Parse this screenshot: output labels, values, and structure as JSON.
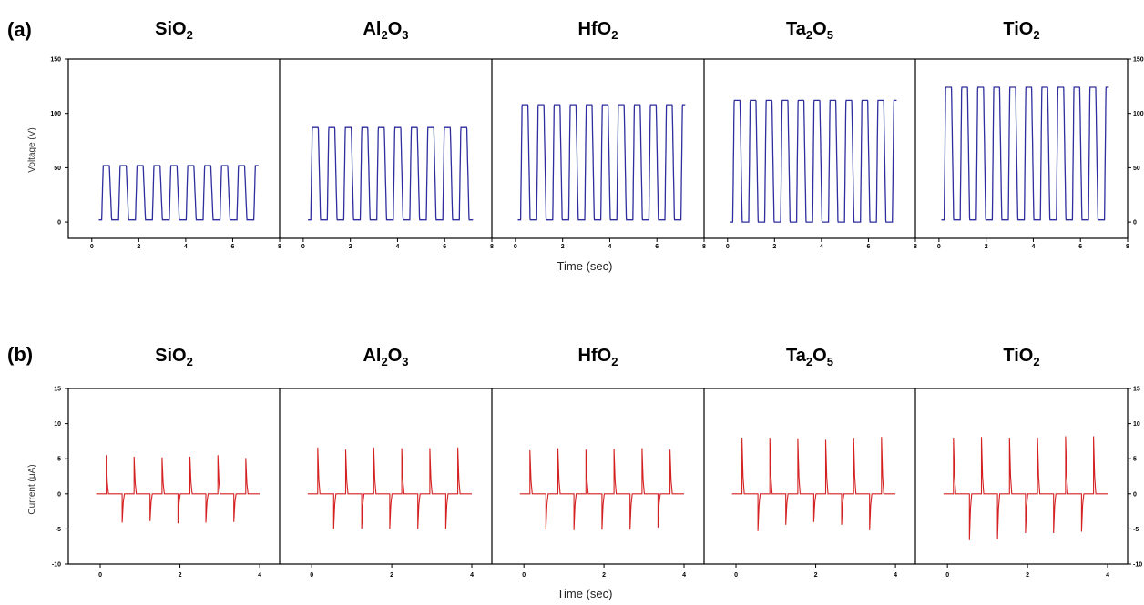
{
  "figure": {
    "panels": [
      {
        "letter": "(a)",
        "ylabel": "Voltage (V)",
        "xlabel": "Time (sec)",
        "color": "#2e2e9e",
        "ylim": [
          -15,
          150
        ],
        "xlim": [
          -1,
          8
        ],
        "yticks": [
          0,
          50,
          100,
          150
        ],
        "xticks": [
          0,
          2,
          4,
          6,
          8
        ],
        "subplots": [
          {
            "title": "SiO",
            "sub1": "2",
            "mid": "",
            "sub2": ""
          },
          {
            "title": "Al",
            "sub1": "2",
            "mid": "O",
            "sub2": "3"
          },
          {
            "title": "HfO",
            "sub1": "2",
            "mid": "",
            "sub2": ""
          },
          {
            "title": "Ta",
            "sub1": "2",
            "mid": "O",
            "sub2": "5"
          },
          {
            "title": "TiO",
            "sub1": "2",
            "mid": "",
            "sub2": ""
          }
        ]
      },
      {
        "letter": "(b)",
        "ylabel": "Current (μA)",
        "xlabel": "Time (sec)",
        "color": "#d42020",
        "ylim": [
          -10,
          15
        ],
        "xlim": [
          -0.8,
          4.5
        ],
        "yticks": [
          -10,
          -5,
          0,
          5,
          10,
          15
        ],
        "xticks": [
          0,
          2,
          4
        ],
        "subplots": [
          {
            "title": "SiO",
            "sub1": "2",
            "mid": "",
            "sub2": ""
          },
          {
            "title": "Al",
            "sub1": "2",
            "mid": "O",
            "sub2": "3"
          },
          {
            "title": "HfO",
            "sub1": "2",
            "mid": "",
            "sub2": ""
          },
          {
            "title": "Ta",
            "sub1": "2",
            "mid": "O",
            "sub2": "5"
          },
          {
            "title": "TiO",
            "sub1": "2",
            "mid": "",
            "sub2": ""
          }
        ]
      }
    ]
  },
  "chart_data": [
    {
      "type": "line",
      "panel": "(a)",
      "ylabel": "Voltage (V)",
      "xlabel": "Time (sec)",
      "xlim": [
        -1,
        8
      ],
      "ylim": [
        -15,
        150
      ],
      "series": [
        {
          "name": "SiO2",
          "amplitude": 52,
          "baseline": 2,
          "pulses": 9,
          "period": 0.72,
          "t_start": 0.3,
          "t_end": 7.1
        },
        {
          "name": "Al2O3",
          "amplitude": 87,
          "baseline": 2,
          "pulses": 10,
          "period": 0.7,
          "t_start": 0.2,
          "t_end": 7.2
        },
        {
          "name": "HfO2",
          "amplitude": 108,
          "baseline": 2,
          "pulses": 10,
          "period": 0.68,
          "t_start": 0.1,
          "t_end": 7.2
        },
        {
          "name": "Ta2O5",
          "amplitude": 112,
          "baseline": 0,
          "pulses": 10,
          "period": 0.68,
          "t_start": 0.1,
          "t_end": 7.2
        },
        {
          "name": "TiO2",
          "amplitude": 124,
          "baseline": 2,
          "pulses": 10,
          "period": 0.68,
          "t_start": 0.1,
          "t_end": 7.2
        }
      ]
    },
    {
      "type": "line",
      "panel": "(b)",
      "ylabel": "Current (μA)",
      "xlabel": "Time (sec)",
      "xlim": [
        -0.8,
        4.5
      ],
      "ylim": [
        -10,
        15
      ],
      "series": [
        {
          "name": "SiO2",
          "pos_times": [
            0.15,
            0.85,
            1.55,
            2.25,
            2.95,
            3.65
          ],
          "pos_peaks": [
            5.5,
            5.3,
            5.2,
            5.3,
            5.5,
            5.1
          ],
          "neg_times": [
            0.55,
            1.25,
            1.95,
            2.65,
            3.35
          ],
          "neg_peaks": [
            -4.1,
            -3.9,
            -4.2,
            -4.1,
            -4.0
          ]
        },
        {
          "name": "Al2O3",
          "pos_times": [
            0.15,
            0.85,
            1.55,
            2.25,
            2.95,
            3.65
          ],
          "pos_peaks": [
            6.6,
            6.3,
            6.6,
            6.5,
            6.5,
            6.6
          ],
          "neg_times": [
            0.55,
            1.25,
            1.95,
            2.65,
            3.35
          ],
          "neg_peaks": [
            -5.0,
            -5.0,
            -5.0,
            -5.0,
            -5.0
          ]
        },
        {
          "name": "HfO2",
          "pos_times": [
            0.15,
            0.85,
            1.55,
            2.25,
            2.95,
            3.65
          ],
          "pos_peaks": [
            6.2,
            6.5,
            6.3,
            6.4,
            6.5,
            6.3
          ],
          "neg_times": [
            0.55,
            1.25,
            1.95,
            2.65,
            3.35
          ],
          "neg_peaks": [
            -5.1,
            -5.2,
            -5.1,
            -5.1,
            -4.8
          ]
        },
        {
          "name": "Ta2O5",
          "pos_times": [
            0.15,
            0.85,
            1.55,
            2.25,
            2.95,
            3.65
          ],
          "pos_peaks": [
            8.0,
            8.0,
            7.9,
            7.7,
            8.0,
            8.1
          ],
          "neg_times": [
            0.55,
            1.25,
            1.95,
            2.65,
            3.35
          ],
          "neg_peaks": [
            -5.3,
            -4.4,
            -4.0,
            -4.4,
            -5.2
          ]
        },
        {
          "name": "TiO2",
          "pos_times": [
            0.15,
            0.85,
            1.55,
            2.25,
            2.95,
            3.65
          ],
          "pos_peaks": [
            8.0,
            8.1,
            8.0,
            8.0,
            8.2,
            8.2
          ],
          "neg_times": [
            0.55,
            1.25,
            1.95,
            2.65,
            3.35
          ],
          "neg_peaks": [
            -6.6,
            -6.5,
            -5.6,
            -5.6,
            -5.4
          ]
        }
      ]
    }
  ]
}
